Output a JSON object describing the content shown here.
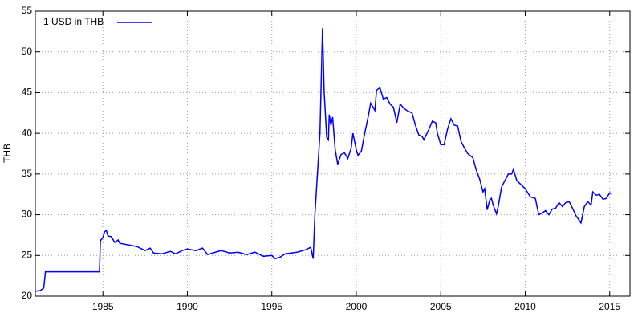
{
  "chart_data": {
    "type": "line",
    "y_label": "THB",
    "x": [
      1981.0,
      1981.3,
      1981.5,
      1981.6,
      1982.0,
      1983.0,
      1984.0,
      1984.8,
      1984.85,
      1985.0,
      1985.1,
      1985.2,
      1985.3,
      1985.5,
      1985.7,
      1985.9,
      1986.0,
      1986.5,
      1987.0,
      1987.5,
      1987.8,
      1988.0,
      1988.5,
      1989.0,
      1989.3,
      1989.7,
      1990.0,
      1990.5,
      1990.9,
      1991.2,
      1991.5,
      1992.0,
      1992.5,
      1993.0,
      1993.5,
      1994.0,
      1994.5,
      1995.0,
      1995.2,
      1995.5,
      1995.8,
      1996.5,
      1997.0,
      1997.3,
      1997.45,
      1997.55,
      1997.7,
      1997.85,
      1998.0,
      1998.1,
      1998.25,
      1998.35,
      1998.4,
      1998.5,
      1998.6,
      1998.75,
      1998.9,
      1999.1,
      1999.3,
      1999.5,
      1999.7,
      1999.8,
      2000.0,
      2000.1,
      2000.3,
      2000.5,
      2000.7,
      2000.85,
      2001.0,
      2001.1,
      2001.2,
      2001.4,
      2001.6,
      2001.8,
      2002.0,
      2002.2,
      2002.4,
      2002.6,
      2002.8,
      2003.0,
      2003.3,
      2003.5,
      2003.7,
      2003.9,
      2004.0,
      2004.3,
      2004.5,
      2004.7,
      2004.8,
      2005.0,
      2005.2,
      2005.4,
      2005.6,
      2005.8,
      2006.0,
      2006.2,
      2006.4,
      2006.6,
      2006.9,
      2007.1,
      2007.3,
      2007.5,
      2007.6,
      2007.75,
      2007.9,
      2008.0,
      2008.1,
      2008.3,
      2008.4,
      2008.6,
      2008.8,
      2009.0,
      2009.2,
      2009.3,
      2009.5,
      2009.7,
      2010.0,
      2010.3,
      2010.6,
      2010.8,
      2011.0,
      2011.2,
      2011.4,
      2011.6,
      2011.8,
      2012.0,
      2012.2,
      2012.4,
      2012.6,
      2012.8,
      2013.0,
      2013.3,
      2013.5,
      2013.7,
      2013.9,
      2014.0,
      2014.2,
      2014.4,
      2014.6,
      2014.8,
      2015.0,
      2015.1
    ],
    "series": [
      {
        "name": "1 USD in THB",
        "color": "#0000ff",
        "values": [
          20.6,
          20.7,
          21.0,
          23.0,
          23.0,
          23.0,
          23.0,
          23.0,
          26.8,
          27.2,
          27.9,
          28.1,
          27.4,
          27.3,
          26.6,
          26.9,
          26.5,
          26.3,
          26.1,
          25.6,
          25.9,
          25.3,
          25.2,
          25.5,
          25.2,
          25.6,
          25.8,
          25.6,
          25.9,
          25.1,
          25.3,
          25.6,
          25.3,
          25.4,
          25.1,
          25.4,
          24.9,
          25.0,
          24.6,
          24.8,
          25.2,
          25.4,
          25.7,
          26.0,
          24.6,
          30.0,
          35.0,
          40.0,
          52.9,
          45.0,
          39.5,
          39.2,
          42.3,
          41.0,
          42.0,
          38.0,
          36.2,
          37.4,
          37.6,
          36.9,
          38.2,
          40.0,
          38.0,
          37.3,
          37.8,
          40.0,
          42.0,
          43.7,
          43.2,
          42.8,
          45.3,
          45.6,
          44.2,
          44.4,
          43.6,
          43.2,
          41.3,
          43.6,
          43.1,
          42.8,
          42.5,
          41.0,
          39.8,
          39.6,
          39.2,
          40.5,
          41.5,
          41.3,
          40.0,
          38.6,
          38.6,
          40.5,
          41.8,
          41.0,
          40.9,
          39.0,
          38.2,
          37.5,
          37.0,
          35.5,
          34.4,
          32.8,
          33.2,
          30.6,
          31.8,
          32.0,
          31.2,
          30.1,
          31.0,
          33.4,
          34.2,
          35.0,
          35.0,
          35.6,
          34.2,
          33.8,
          33.2,
          32.2,
          32.0,
          30.0,
          30.2,
          30.5,
          30.0,
          30.7,
          30.8,
          31.5,
          31.0,
          31.5,
          31.6,
          30.8,
          29.9,
          29.0,
          31.0,
          31.6,
          31.2,
          32.8,
          32.4,
          32.5,
          31.9,
          32.0,
          32.7,
          32.6
        ]
      }
    ],
    "xlim": [
      1981,
      2016.2
    ],
    "xticks": [
      1985,
      1990,
      1995,
      2000,
      2005,
      2010,
      2015
    ],
    "ylim": [
      20,
      55
    ],
    "yticks": [
      20,
      25,
      30,
      35,
      40,
      45,
      50,
      55
    ],
    "grid": true,
    "legend": "top-left"
  }
}
